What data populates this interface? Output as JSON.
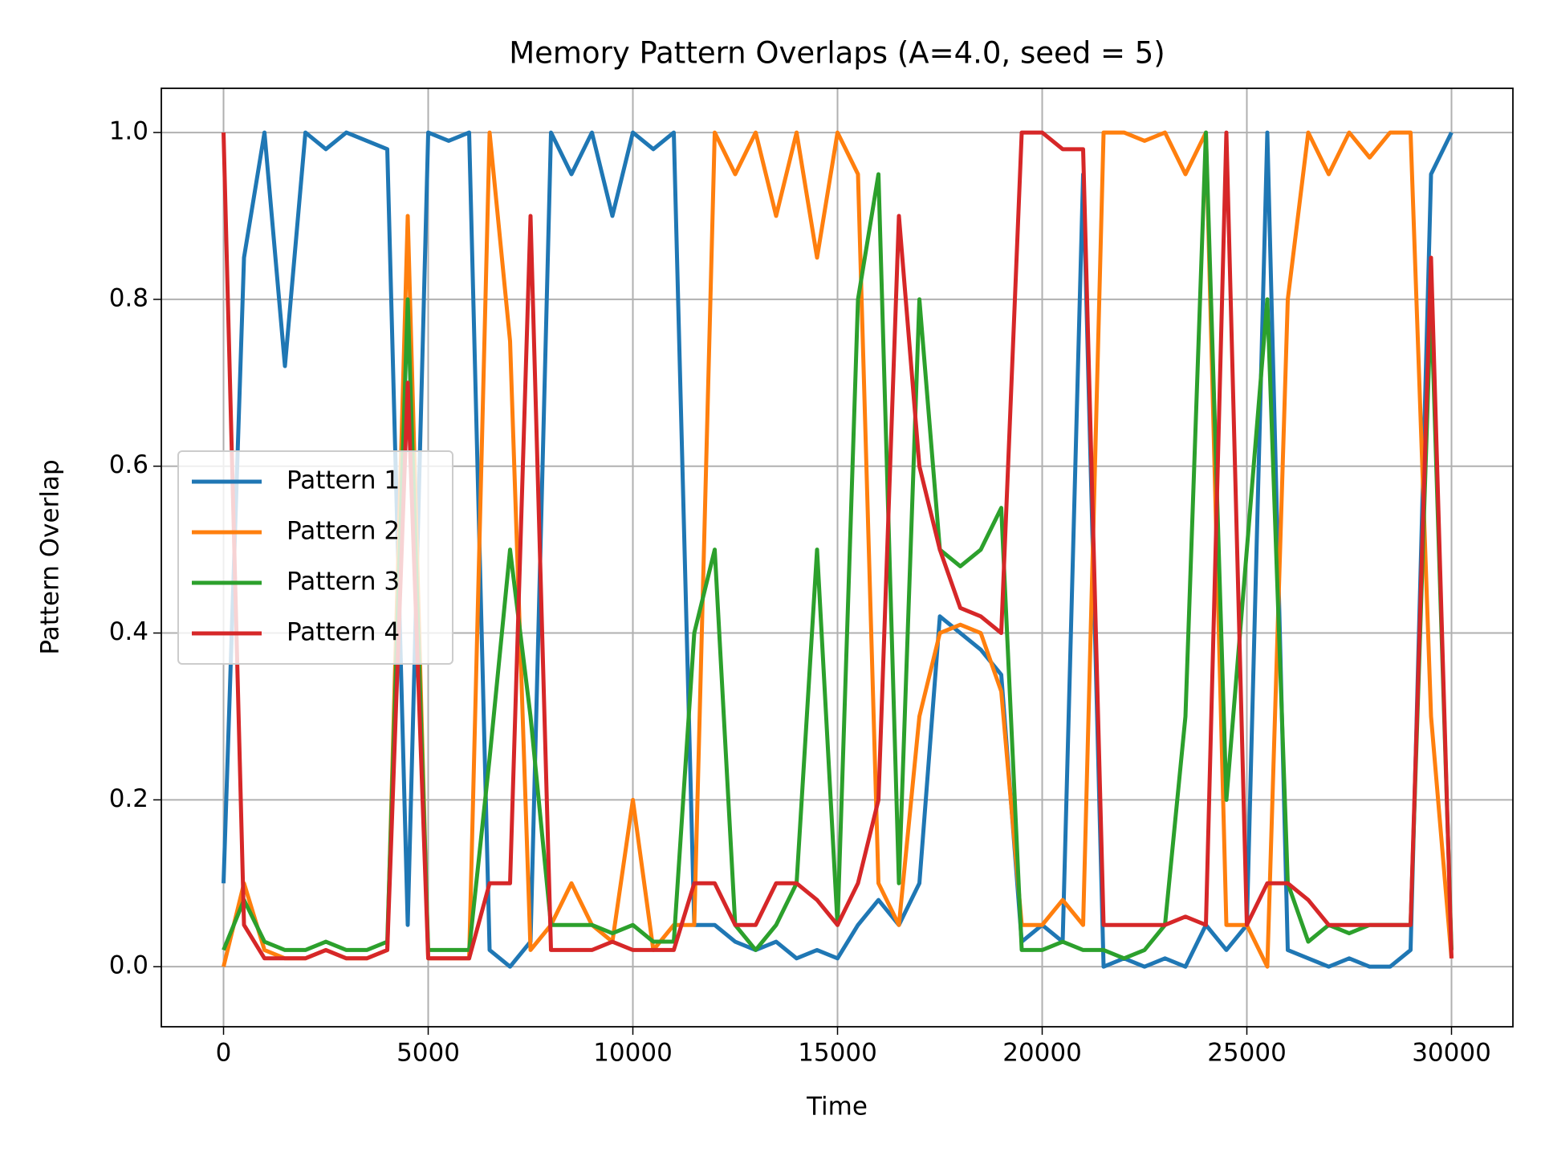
{
  "chart_data": {
    "type": "line",
    "title": "Memory Pattern Overlaps (A=4.0, seed = 5)",
    "x_label": "Time",
    "y_label": "Pattern Overlap",
    "x": [
      0,
      500,
      1000,
      1500,
      2000,
      2500,
      3000,
      3500,
      4000,
      4500,
      5000,
      5500,
      6000,
      6500,
      7000,
      7500,
      8000,
      8500,
      9000,
      9500,
      10000,
      10500,
      11000,
      11500,
      12000,
      12500,
      13000,
      13500,
      14000,
      14500,
      15000,
      15500,
      16000,
      16500,
      17000,
      17500,
      18000,
      18500,
      19000,
      19500,
      20000,
      20500,
      21000,
      21500,
      22000,
      22500,
      23000,
      23500,
      24000,
      24500,
      25000,
      25500,
      26000,
      26500,
      27000,
      27500,
      28000,
      28500,
      29000,
      29500,
      30000
    ],
    "series": [
      {
        "name": "Pattern 1",
        "color": "#1f77b4",
        "values": [
          0.1,
          0.85,
          1.0,
          0.72,
          1.0,
          0.98,
          1.0,
          0.99,
          0.98,
          0.05,
          1.0,
          0.99,
          1.0,
          0.02,
          0.0,
          0.03,
          1.0,
          0.95,
          1.0,
          0.9,
          1.0,
          0.98,
          1.0,
          0.05,
          0.05,
          0.03,
          0.02,
          0.03,
          0.01,
          0.02,
          0.01,
          0.05,
          0.08,
          0.05,
          0.1,
          0.42,
          0.4,
          0.38,
          0.35,
          0.03,
          0.05,
          0.03,
          0.95,
          0.0,
          0.01,
          0.0,
          0.01,
          0.0,
          0.05,
          0.02,
          0.05,
          1.0,
          0.02,
          0.01,
          0.0,
          0.01,
          0.0,
          0.0,
          0.02,
          0.95,
          1.0
        ]
      },
      {
        "name": "Pattern 2",
        "color": "#ff7f0e",
        "values": [
          0.0,
          0.1,
          0.02,
          0.01,
          0.01,
          0.02,
          0.01,
          0.01,
          0.02,
          0.9,
          0.01,
          0.01,
          0.01,
          1.0,
          0.75,
          0.02,
          0.05,
          0.1,
          0.05,
          0.03,
          0.2,
          0.02,
          0.05,
          0.05,
          1.0,
          0.95,
          1.0,
          0.9,
          1.0,
          0.85,
          1.0,
          0.95,
          0.1,
          0.05,
          0.3,
          0.4,
          0.41,
          0.4,
          0.33,
          0.05,
          0.05,
          0.08,
          0.05,
          1.0,
          1.0,
          0.99,
          1.0,
          0.95,
          1.0,
          0.05,
          0.05,
          0.0,
          0.8,
          1.0,
          0.95,
          1.0,
          0.97,
          1.0,
          1.0,
          0.3,
          0.01
        ]
      },
      {
        "name": "Pattern 3",
        "color": "#2ca02c",
        "values": [
          0.02,
          0.08,
          0.03,
          0.02,
          0.02,
          0.03,
          0.02,
          0.02,
          0.03,
          0.8,
          0.02,
          0.02,
          0.02,
          0.25,
          0.5,
          0.3,
          0.05,
          0.05,
          0.05,
          0.04,
          0.05,
          0.03,
          0.03,
          0.4,
          0.5,
          0.05,
          0.02,
          0.05,
          0.1,
          0.5,
          0.05,
          0.8,
          0.95,
          0.1,
          0.8,
          0.5,
          0.48,
          0.5,
          0.55,
          0.02,
          0.02,
          0.03,
          0.02,
          0.02,
          0.01,
          0.02,
          0.05,
          0.3,
          1.0,
          0.2,
          0.5,
          0.8,
          0.1,
          0.03,
          0.05,
          0.04,
          0.05,
          0.05,
          0.05,
          0.8,
          0.02
        ]
      },
      {
        "name": "Pattern 4",
        "color": "#d62728",
        "values": [
          1.0,
          0.05,
          0.01,
          0.01,
          0.01,
          0.02,
          0.01,
          0.01,
          0.02,
          0.7,
          0.01,
          0.01,
          0.01,
          0.1,
          0.1,
          0.9,
          0.02,
          0.02,
          0.02,
          0.03,
          0.02,
          0.02,
          0.02,
          0.1,
          0.1,
          0.05,
          0.05,
          0.1,
          0.1,
          0.08,
          0.05,
          0.1,
          0.2,
          0.9,
          0.6,
          0.5,
          0.43,
          0.42,
          0.4,
          1.0,
          1.0,
          0.98,
          0.98,
          0.05,
          0.05,
          0.05,
          0.05,
          0.06,
          0.05,
          1.0,
          0.05,
          0.1,
          0.1,
          0.08,
          0.05,
          0.05,
          0.05,
          0.05,
          0.05,
          0.85,
          0.01
        ]
      }
    ],
    "xlim": [
      -1520,
      31500
    ],
    "ylim": [
      -0.072,
      1.053
    ],
    "xticks": [
      0,
      5000,
      10000,
      15000,
      20000,
      25000,
      30000
    ],
    "yticks": [
      {
        "value": 0.0,
        "label": "0.0"
      },
      0.2,
      0.4,
      0.6,
      0.8,
      {
        "value": 1.0,
        "label": "1.0"
      }
    ],
    "grid": true,
    "legend": "center left"
  }
}
